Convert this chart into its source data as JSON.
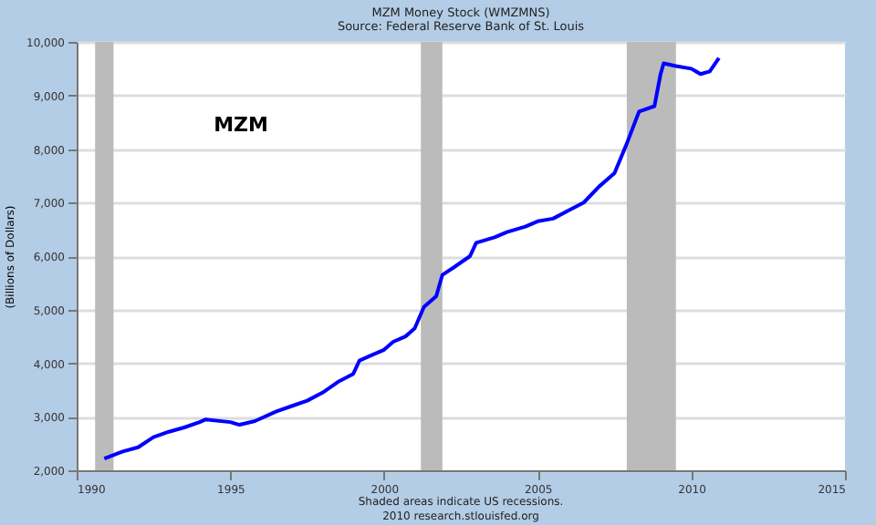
{
  "chart_data": {
    "type": "line",
    "title": "MZM Money Stock (WMZMNS)",
    "subtitle": "Source: Federal Reserve Bank of St. Louis",
    "ylabel": "(Billions of Dollars)",
    "annotations": [
      "MZM",
      "Shaded areas indicate US recessions.",
      "2010 research.stlouisfed.org"
    ],
    "series": [
      {
        "color": "#0000ff",
        "x": [
          1990.9,
          1991.5,
          1992.0,
          1992.5,
          1993.0,
          1993.5,
          1994.0,
          1994.2,
          1995.0,
          1995.3,
          1995.8,
          1996.5,
          1997.0,
          1997.5,
          1998.0,
          1998.5,
          1999.0,
          1999.2,
          1999.6,
          2000.0,
          2000.3,
          2000.7,
          2001.0,
          2001.3,
          2001.7,
          2001.9,
          2002.3,
          2002.8,
          2003.0,
          2003.6,
          2004.0,
          2004.6,
          2005.0,
          2005.5,
          2006.0,
          2006.5,
          2007.0,
          2007.5,
          2007.9,
          2008.3,
          2008.8,
          2009.0,
          2009.1,
          2009.5,
          2010.0,
          2010.3,
          2010.6,
          2010.9
        ],
        "values": [
          2220,
          2350,
          2430,
          2620,
          2720,
          2800,
          2900,
          2950,
          2900,
          2850,
          2920,
          3100,
          3200,
          3300,
          3450,
          3650,
          3800,
          4050,
          4150,
          4250,
          4400,
          4500,
          4650,
          5050,
          5250,
          5650,
          5800,
          6000,
          6250,
          6350,
          6450,
          6550,
          6650,
          6700,
          6850,
          7000,
          7300,
          7550,
          8100,
          8700,
          8800,
          9400,
          9600,
          9550,
          9500,
          9400,
          9450,
          9700
        ]
      }
    ],
    "bands": [
      {
        "axis": "x",
        "from": 1990.6,
        "to": 1991.2,
        "color": "#bbbbbb"
      },
      {
        "axis": "x",
        "from": 2001.2,
        "to": 2001.9,
        "color": "#bbbbbb"
      },
      {
        "axis": "x",
        "from": 2007.9,
        "to": 2009.5,
        "color": "#bbbbbb"
      }
    ],
    "xlim": [
      1990,
      2015
    ],
    "xticks": [
      1990,
      1995,
      2000,
      2005,
      2010,
      2015
    ],
    "ylim": [
      2000,
      10000
    ],
    "yticks": [
      {
        "value": 2000,
        "label": "2,000"
      },
      {
        "value": 3000,
        "label": "3,000"
      },
      {
        "value": 4000,
        "label": "4,000"
      },
      {
        "value": 5000,
        "label": "5,000"
      },
      {
        "value": 6000,
        "label": "6,000"
      },
      {
        "value": 7000,
        "label": "7,000"
      },
      {
        "value": 8000,
        "label": "8,000"
      },
      {
        "value": 9000,
        "label": "9,000"
      },
      {
        "value": 10000,
        "label": "10,000"
      }
    ],
    "grid": "y",
    "marker": "none",
    "line_style": "solid"
  }
}
